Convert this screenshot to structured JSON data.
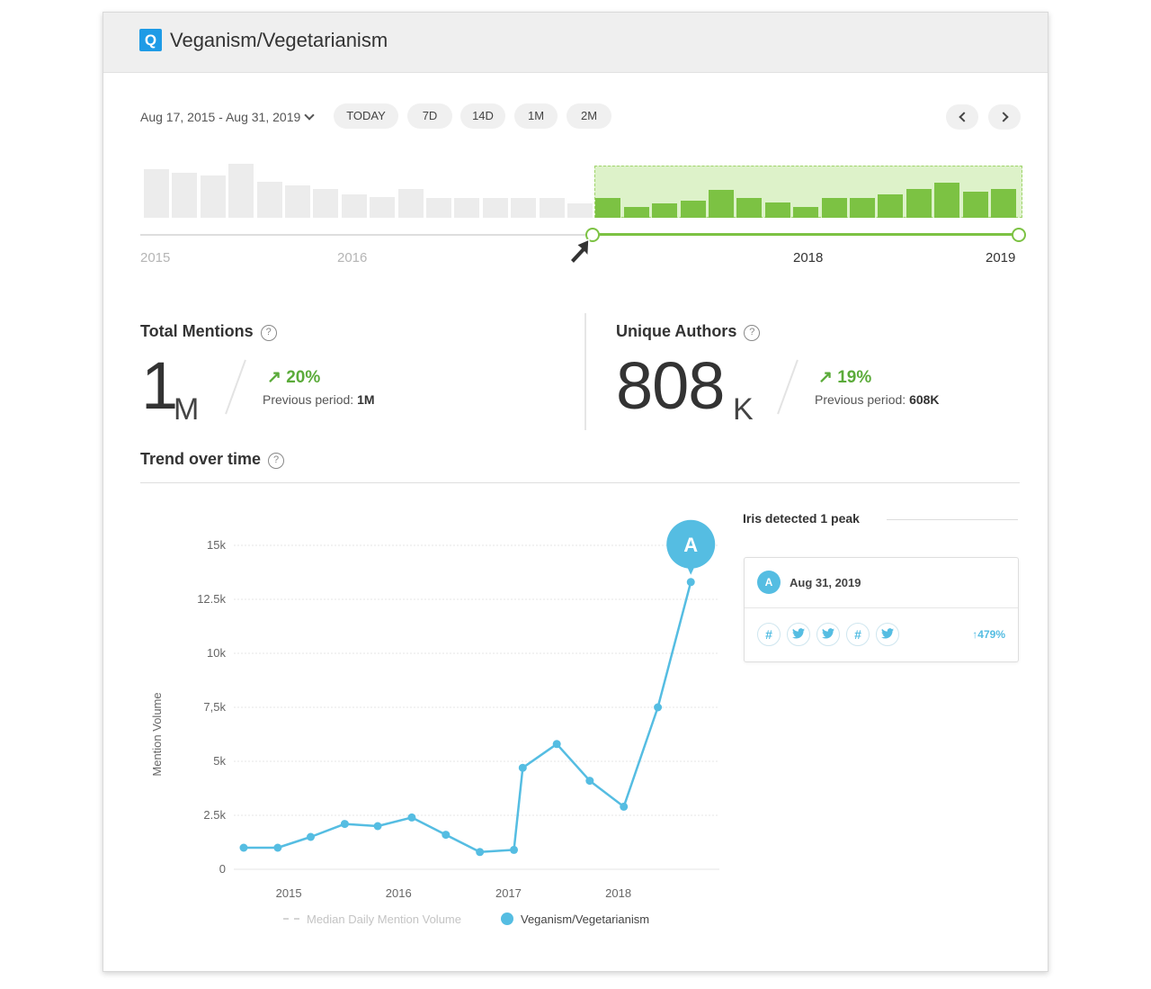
{
  "header": {
    "logo_letter": "Q",
    "title": "Veganism/Vegetarianism"
  },
  "date_range": {
    "label": "Aug 17, 2015 - Aug 31, 2019"
  },
  "range_buttons": [
    "TODAY",
    "7D",
    "14D",
    "1M",
    "2M"
  ],
  "timeline": {
    "years": [
      "2015",
      "2016",
      "2018",
      "2019"
    ],
    "bar_levels": [
      0.84,
      0.78,
      0.73,
      0.94,
      0.63,
      0.56,
      0.5,
      0.41,
      0.36,
      0.5,
      0.34,
      0.34,
      0.34,
      0.34,
      0.34,
      0.25,
      0.34,
      0.19,
      0.25,
      0.3,
      0.48,
      0.34,
      0.27,
      0.19,
      0.34,
      0.34,
      0.41,
      0.5,
      0.61,
      0.45,
      0.5
    ],
    "selected_from_index": 16,
    "colors": {
      "inactive": "#ececec",
      "selected": "#7cc243",
      "selection_bg": "#ddf2c9"
    }
  },
  "metrics": {
    "total_mentions": {
      "label": "Total Mentions",
      "value": "1",
      "unit": "M",
      "change": "20%",
      "previous_label": "Previous period:",
      "previous_value": "1M"
    },
    "unique_authors": {
      "label": "Unique Authors",
      "value": "808",
      "unit": "K",
      "change": "19%",
      "previous_label": "Previous period:",
      "previous_value": "608K"
    }
  },
  "trend": {
    "title": "Trend over time"
  },
  "chart_data": {
    "type": "line",
    "ylabel": "Mention Volume",
    "xlabel": "",
    "y_ticks": [
      "0",
      "2.5k",
      "5k",
      "7,5k",
      "10k",
      "12.5k",
      "15k"
    ],
    "ylim": [
      0,
      15000
    ],
    "x_ticks": [
      {
        "label": "2015",
        "x": 2015
      },
      {
        "label": "2016",
        "x": 2016
      },
      {
        "label": "2017",
        "x": 2017
      },
      {
        "label": "2018",
        "x": 2018
      }
    ],
    "series": [
      {
        "name": "Veganism/Vegetarianism",
        "color": "#55bde2",
        "x": [
          2014.59,
          2014.9,
          2015.2,
          2015.51,
          2015.81,
          2016.12,
          2016.43,
          2016.74,
          2017.05,
          2017.13,
          2017.44,
          2017.74,
          2018.05,
          2018.36,
          2018.66
        ],
        "values": [
          1000,
          1000,
          1500,
          2100,
          2000,
          2400,
          1600,
          800,
          900,
          4700,
          5800,
          4100,
          2900,
          7500,
          13300
        ]
      }
    ],
    "peak": {
      "label": "A",
      "index": 14
    },
    "legend": {
      "median_label": "Median Daily Mention Volume",
      "series_label": "Veganism/Vegetarianism"
    }
  },
  "peaks_panel": {
    "title": "Iris detected 1 peak",
    "peak_label": "A",
    "date": "Aug 31, 2019",
    "icons": [
      "hashtag-icon",
      "twitter-icon",
      "twitter-icon",
      "hashtag-icon",
      "twitter-icon"
    ],
    "hash_symbol": "#",
    "change": "479%"
  }
}
